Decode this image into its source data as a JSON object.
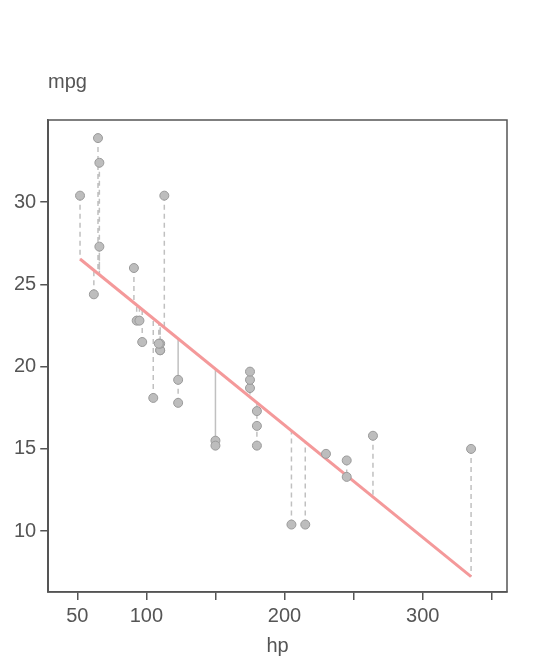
{
  "chart_data": {
    "type": "scatter",
    "x_label": "hp",
    "y_label": "mpg",
    "x": [
      110,
      110,
      93,
      110,
      175,
      105,
      245,
      62,
      95,
      123,
      123,
      180,
      180,
      180,
      205,
      215,
      230,
      66,
      52,
      65,
      97,
      150,
      150,
      245,
      175,
      66,
      91,
      113,
      264,
      175,
      335,
      109
    ],
    "values": [
      21.0,
      21.0,
      22.8,
      21.4,
      18.7,
      18.1,
      14.3,
      24.4,
      22.8,
      19.2,
      17.8,
      16.4,
      17.3,
      15.2,
      10.4,
      10.4,
      14.7,
      32.4,
      30.4,
      33.9,
      21.5,
      15.5,
      15.2,
      13.3,
      19.2,
      27.3,
      26.0,
      30.4,
      15.8,
      19.7,
      15.0,
      21.4
    ],
    "color": "#bdbdbd",
    "marker": "circle",
    "fit": {
      "x": [
        52,
        335
      ],
      "values": [
        26.55,
        7.24
      ],
      "color": "#f4999a",
      "line_style": "solid"
    },
    "residuals": {
      "values": [
        22.59,
        22.59,
        23.75,
        22.59,
        18.16,
        22.93,
        13.38,
        25.87,
        23.62,
        21.71,
        21.71,
        17.82,
        17.82,
        17.82,
        16.11,
        15.43,
        14.41,
        25.6,
        26.55,
        25.66,
        23.48,
        19.86,
        19.86,
        13.38,
        18.16,
        25.6,
        23.89,
        22.39,
        12.09,
        18.16,
        7.24,
        22.66
      ],
      "color": "#c0c0c0",
      "line_style": "dashed"
    },
    "xlim": [
      29,
      361
    ],
    "ylim": [
      6.3,
      35
    ],
    "xticks": [
      50,
      100,
      {
        "value": 150,
        "label": null
      },
      200,
      {
        "value": 250,
        "label": null
      },
      300,
      {
        "value": 350,
        "label": null
      }
    ],
    "yticks": [
      10,
      15,
      20,
      25,
      30
    ],
    "grid": false
  }
}
